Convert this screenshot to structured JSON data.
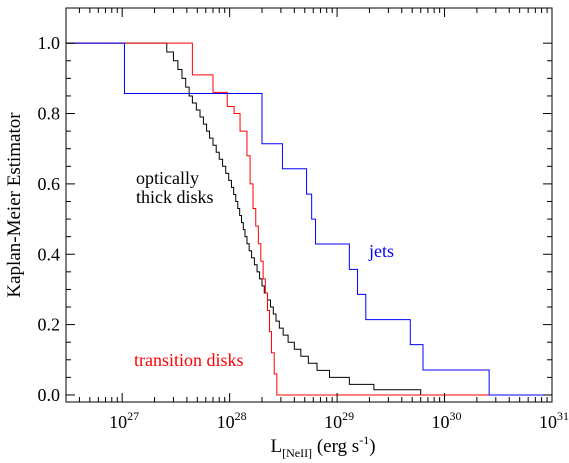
{
  "chart_data": {
    "type": "line",
    "subtype": "step (Kaplan-Meier survival curves)",
    "title": "",
    "xlabel": "L_[NeII] (erg s^-1)",
    "xlabel_parts": {
      "main": "L",
      "subscript": "[NeII]",
      "unit_before": "(erg s",
      "superscript": "-1",
      "unit_after": ")"
    },
    "ylabel": "Kaplan-Meier Estimator",
    "xscale": "log",
    "xlim": [
      3e+26,
      1e+31
    ],
    "ylim": [
      -0.02,
      1.1
    ],
    "grid": false,
    "legend": "none (series labelled directly on the plot)",
    "x_ticks": [
      {
        "value": 1e+27,
        "base": "10",
        "exp": "27"
      },
      {
        "value": 1e+28,
        "base": "10",
        "exp": "28"
      },
      {
        "value": 1e+29,
        "base": "10",
        "exp": "29"
      },
      {
        "value": 1e+30,
        "base": "10",
        "exp": "30"
      },
      {
        "value": 1e+31,
        "base": "10",
        "exp": "31"
      }
    ],
    "y_ticks": [
      {
        "value": 0.0,
        "label": "0.0"
      },
      {
        "value": 0.2,
        "label": "0.2"
      },
      {
        "value": 0.4,
        "label": "0.4"
      },
      {
        "value": 0.6,
        "label": "0.6"
      },
      {
        "value": 0.8,
        "label": "0.8"
      },
      {
        "value": 1.0,
        "label": "1.0"
      }
    ],
    "series": [
      {
        "name": "optically thick disks",
        "label_lines": [
          "optically",
          "thick disks"
        ],
        "color": "#000000",
        "steps": [
          [
            3e+26,
            1.0
          ],
          [
            2.6e+27,
            0.975
          ],
          [
            3e+27,
            0.95
          ],
          [
            3.3e+27,
            0.925
          ],
          [
            3.6e+27,
            0.9
          ],
          [
            3.9e+27,
            0.875
          ],
          [
            4.2e+27,
            0.85
          ],
          [
            4.5e+27,
            0.83
          ],
          [
            4.9e+27,
            0.81
          ],
          [
            5.3e+27,
            0.79
          ],
          [
            5.7e+27,
            0.77
          ],
          [
            6.1e+27,
            0.75
          ],
          [
            6.5e+27,
            0.73
          ],
          [
            7e+27,
            0.71
          ],
          [
            7.5e+27,
            0.69
          ],
          [
            8e+27,
            0.67
          ],
          [
            8.6e+27,
            0.65
          ],
          [
            9.2e+27,
            0.63
          ],
          [
            9.8e+27,
            0.61
          ],
          [
            1.04e+28,
            0.59
          ],
          [
            1.09e+28,
            0.57
          ],
          [
            1.14e+28,
            0.55
          ],
          [
            1.19e+28,
            0.53
          ],
          [
            1.24e+28,
            0.51
          ],
          [
            1.29e+28,
            0.49
          ],
          [
            1.34e+28,
            0.47
          ],
          [
            1.39e+28,
            0.45
          ],
          [
            1.45e+28,
            0.43
          ],
          [
            1.52e+28,
            0.41
          ],
          [
            1.6e+28,
            0.39
          ],
          [
            1.7e+28,
            0.37
          ],
          [
            1.8e+28,
            0.35
          ],
          [
            1.9e+28,
            0.33
          ],
          [
            2e+28,
            0.31
          ],
          [
            2.1e+28,
            0.29
          ],
          [
            2.25e+28,
            0.27
          ],
          [
            2.4e+28,
            0.25
          ],
          [
            2.55e+28,
            0.23
          ],
          [
            2.7e+28,
            0.21
          ],
          [
            2.9e+28,
            0.19
          ],
          [
            3.15e+28,
            0.17
          ],
          [
            3.5e+28,
            0.15
          ],
          [
            4e+28,
            0.13
          ],
          [
            4.6e+28,
            0.11
          ],
          [
            5.4e+28,
            0.09
          ],
          [
            6.5e+28,
            0.07
          ],
          [
            8.5e+28,
            0.05
          ],
          [
            1.3e+29,
            0.03
          ],
          [
            2.2e+29,
            0.015
          ],
          [
            6e+29,
            0.0
          ],
          [
            1e+31,
            0.0
          ]
        ]
      },
      {
        "name": "transition disks",
        "color": "#ff0000",
        "steps": [
          [
            3e+26,
            1.0
          ],
          [
            4.5e+27,
            0.91
          ],
          [
            7e+27,
            0.86
          ],
          [
            9.5e+27,
            0.82
          ],
          [
            1.1e+28,
            0.8
          ],
          [
            1.25e+28,
            0.75
          ],
          [
            1.45e+28,
            0.68
          ],
          [
            1.55e+28,
            0.6
          ],
          [
            1.65e+28,
            0.53
          ],
          [
            1.75e+28,
            0.48
          ],
          [
            1.85e+28,
            0.43
          ],
          [
            1.95e+28,
            0.38
          ],
          [
            2.05e+28,
            0.33
          ],
          [
            2.15e+28,
            0.29
          ],
          [
            2.25e+28,
            0.24
          ],
          [
            2.35e+28,
            0.18
          ],
          [
            2.45e+28,
            0.12
          ],
          [
            2.6e+28,
            0.06
          ],
          [
            2.75e+28,
            0.0
          ],
          [
            1e+31,
            0.0
          ]
        ]
      },
      {
        "name": "jets",
        "color": "#0000ff",
        "steps": [
          [
            3e+26,
            1.0
          ],
          [
            1.05e+27,
            0.857
          ],
          [
            2e+28,
            0.714
          ],
          [
            3.1e+28,
            0.643
          ],
          [
            5.2e+28,
            0.571
          ],
          [
            5.8e+28,
            0.5
          ],
          [
            6.3e+28,
            0.429
          ],
          [
            1.3e+29,
            0.357
          ],
          [
            1.55e+29,
            0.286
          ],
          [
            1.85e+29,
            0.214
          ],
          [
            4.8e+29,
            0.143
          ],
          [
            6.3e+29,
            0.071
          ],
          [
            2.6e+30,
            0.0
          ],
          [
            1e+31,
            0.0
          ]
        ]
      }
    ]
  }
}
